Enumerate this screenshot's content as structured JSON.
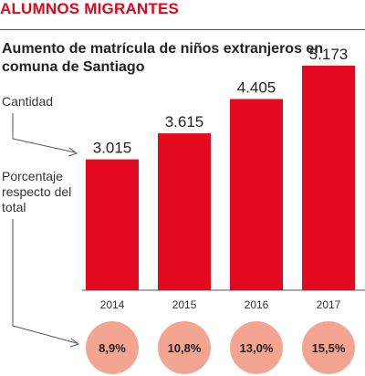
{
  "kicker": "ALUMNOS MIGRANTES",
  "title": "Aumento de matrícula de niños extranjeros en comuna de Santiago",
  "labels": {
    "cantidad": "Cantidad",
    "porcentaje": "Porcentaje respecto del total"
  },
  "colors": {
    "accent": "#e3051b",
    "bar": "#e30a20",
    "circle": "#f3a591",
    "rule": "#555555"
  },
  "chart_data": {
    "type": "bar",
    "categories": [
      "2014",
      "2015",
      "2016",
      "2017"
    ],
    "values": [
      3015,
      3615,
      4405,
      5173
    ],
    "value_labels": [
      "3.015",
      "3.615",
      "4.405",
      "5.173"
    ],
    "percent_labels": [
      "8,9%",
      "10,8%",
      "13,0%",
      "15,5%"
    ],
    "title": "Aumento de matrícula de niños extranjeros en comuna de Santiago",
    "xlabel": "",
    "ylabel": "Cantidad",
    "grid": false,
    "legend": "none"
  }
}
